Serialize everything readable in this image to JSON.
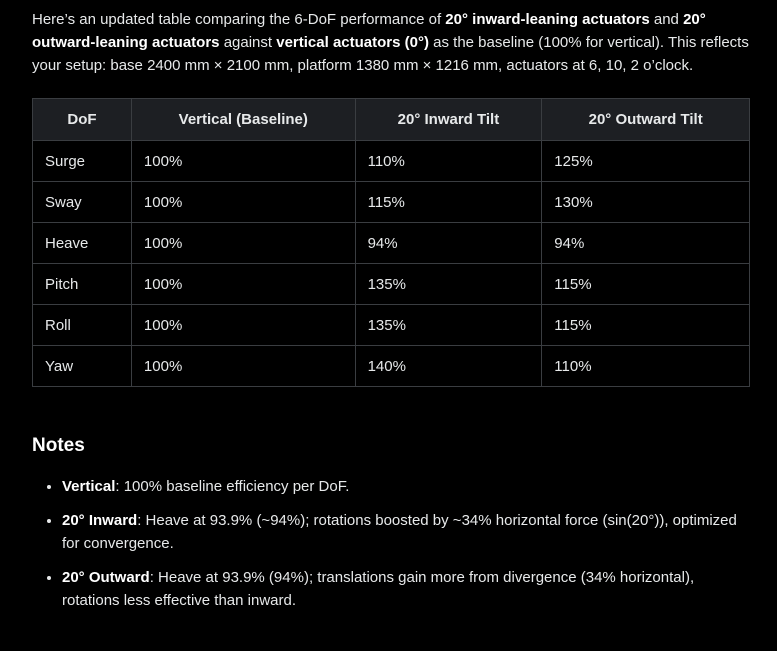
{
  "intro": {
    "p1": "Here’s an updated table comparing the 6-DoF performance of ",
    "b1": "20° inward-leaning actuators",
    "p2": " and ",
    "b2": "20° outward-leaning actuators",
    "p3": " against ",
    "b3": "vertical actuators (0°)",
    "p4": " as the baseline (100% for vertical). This reflects your setup: base 2400 mm × 2100 mm, platform 1380 mm × 1216 mm, actuators at 6, 10, 2 o’clock."
  },
  "table": {
    "headers": [
      "DoF",
      "Vertical (Baseline)",
      "20° Inward Tilt",
      "20° Outward Tilt"
    ],
    "rows": [
      [
        "Surge",
        "100%",
        "110%",
        "125%"
      ],
      [
        "Sway",
        "100%",
        "115%",
        "130%"
      ],
      [
        "Heave",
        "100%",
        "94%",
        "94%"
      ],
      [
        "Pitch",
        "100%",
        "135%",
        "115%"
      ],
      [
        "Roll",
        "100%",
        "135%",
        "115%"
      ],
      [
        "Yaw",
        "100%",
        "140%",
        "110%"
      ]
    ]
  },
  "notes": {
    "heading": "Notes",
    "items": [
      {
        "label": "Vertical",
        "text": ": 100% baseline efficiency per DoF."
      },
      {
        "label": "20° Inward",
        "text": ": Heave at 93.9% (~94%); rotations boosted by ~34% horizontal force (sin(20°)), optimized for convergence."
      },
      {
        "label": "20° Outward",
        "text": ": Heave at 93.9% (94%); translations gain more from divergence (34% horizontal), rotations less effective than inward."
      }
    ]
  }
}
